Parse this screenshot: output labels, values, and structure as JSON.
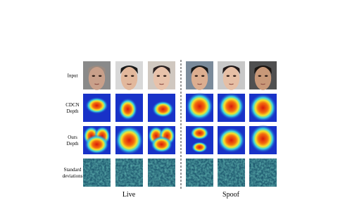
{
  "figure": {
    "row_labels": [
      [
        "Input"
      ],
      [
        "CDCN",
        "Depth"
      ],
      [
        "Ours",
        "Depth"
      ],
      [
        "Standard",
        "deviations"
      ]
    ],
    "group_labels": [
      "Live",
      "Spoof"
    ]
  }
}
